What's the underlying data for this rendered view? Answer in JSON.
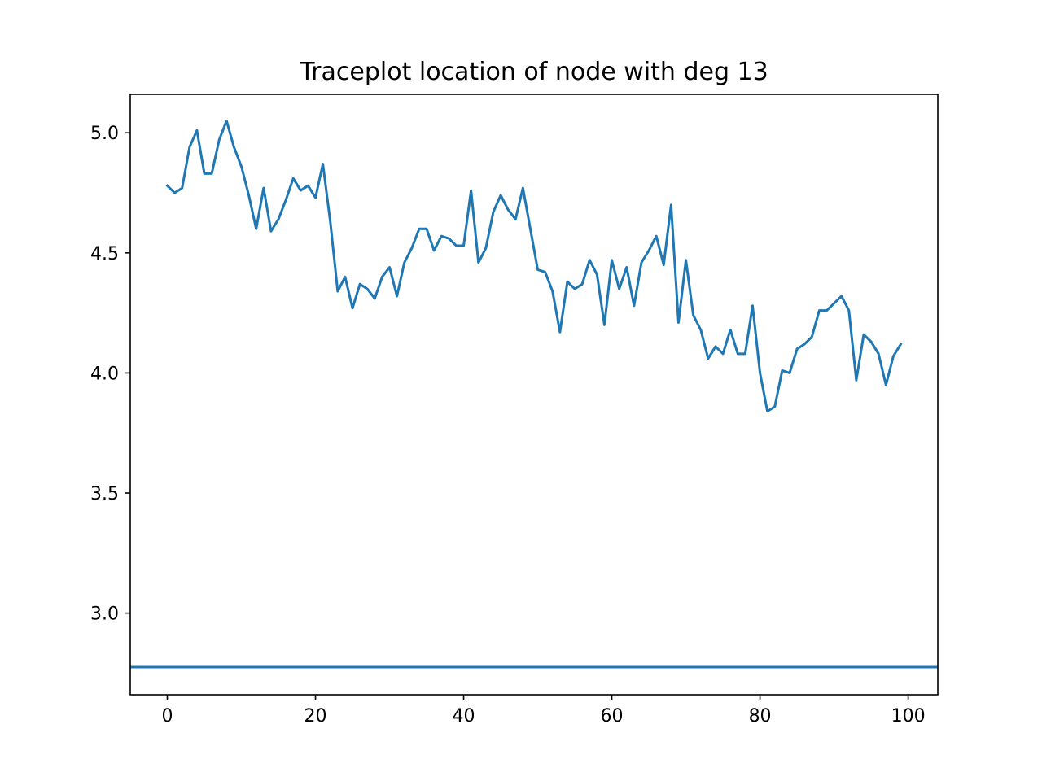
{
  "chart_data": {
    "type": "line",
    "title": "Traceplot location of node with deg 13",
    "xlabel": "",
    "ylabel": "",
    "xlim": [
      -5,
      104
    ],
    "ylim": [
      2.66,
      5.16
    ],
    "xticks": [
      0,
      20,
      40,
      60,
      80,
      100
    ],
    "xtick_labels": [
      "0",
      "20",
      "40",
      "60",
      "80",
      "100"
    ],
    "yticks": [
      3.0,
      3.5,
      4.0,
      4.5,
      5.0
    ],
    "ytick_labels": [
      "3.0",
      "3.5",
      "4.0",
      "4.5",
      "5.0"
    ],
    "grid": false,
    "legend": "none",
    "colors": {
      "series": "#1f77b4",
      "axes": "#000000",
      "background": "#ffffff"
    },
    "series": [
      {
        "x": [
          0,
          1,
          2,
          3,
          4,
          5,
          6,
          7,
          8,
          9,
          10,
          11,
          12,
          13,
          14,
          15,
          16,
          17,
          18,
          19,
          20,
          21,
          22,
          23,
          24,
          25,
          26,
          27,
          28,
          29,
          30,
          31,
          32,
          33,
          34,
          35,
          36,
          37,
          38,
          39,
          40,
          41,
          42,
          43,
          44,
          45,
          46,
          47,
          48,
          49,
          50,
          51,
          52,
          53,
          54,
          55,
          56,
          57,
          58,
          59,
          60,
          61,
          62,
          63,
          64,
          65,
          66,
          67,
          68,
          69,
          70,
          71,
          72,
          73,
          74,
          75,
          76,
          77,
          78,
          79,
          80,
          81,
          82,
          83,
          84,
          85,
          86,
          87,
          88,
          89,
          90,
          91,
          92,
          93,
          94,
          95,
          96,
          97,
          98,
          99
        ],
        "values": [
          4.78,
          4.75,
          4.77,
          4.94,
          5.01,
          4.83,
          4.83,
          4.97,
          5.05,
          4.94,
          4.86,
          4.74,
          4.6,
          4.77,
          4.59,
          4.64,
          4.72,
          4.81,
          4.76,
          4.78,
          4.73,
          4.87,
          4.63,
          4.34,
          4.4,
          4.27,
          4.37,
          4.35,
          4.31,
          4.4,
          4.44,
          4.32,
          4.46,
          4.52,
          4.6,
          4.6,
          4.51,
          4.57,
          4.56,
          4.53,
          4.53,
          4.76,
          4.46,
          4.52,
          4.67,
          4.74,
          4.68,
          4.64,
          4.77,
          4.6,
          4.43,
          4.42,
          4.34,
          4.17,
          4.38,
          4.35,
          4.37,
          4.47,
          4.41,
          4.2,
          4.47,
          4.35,
          4.44,
          4.28,
          4.46,
          4.51,
          4.57,
          4.45,
          4.7,
          4.21,
          4.47,
          4.24,
          4.18,
          4.06,
          4.11,
          4.08,
          4.18,
          4.08,
          4.08,
          4.28,
          4.0,
          3.84,
          3.86,
          4.01,
          4.0,
          4.1,
          4.12,
          4.15,
          4.26,
          4.26,
          4.29,
          4.32,
          4.26,
          3.97,
          4.16,
          4.13,
          4.08,
          3.95,
          4.07,
          4.12
        ]
      }
    ],
    "hlines": [
      2.775
    ]
  }
}
